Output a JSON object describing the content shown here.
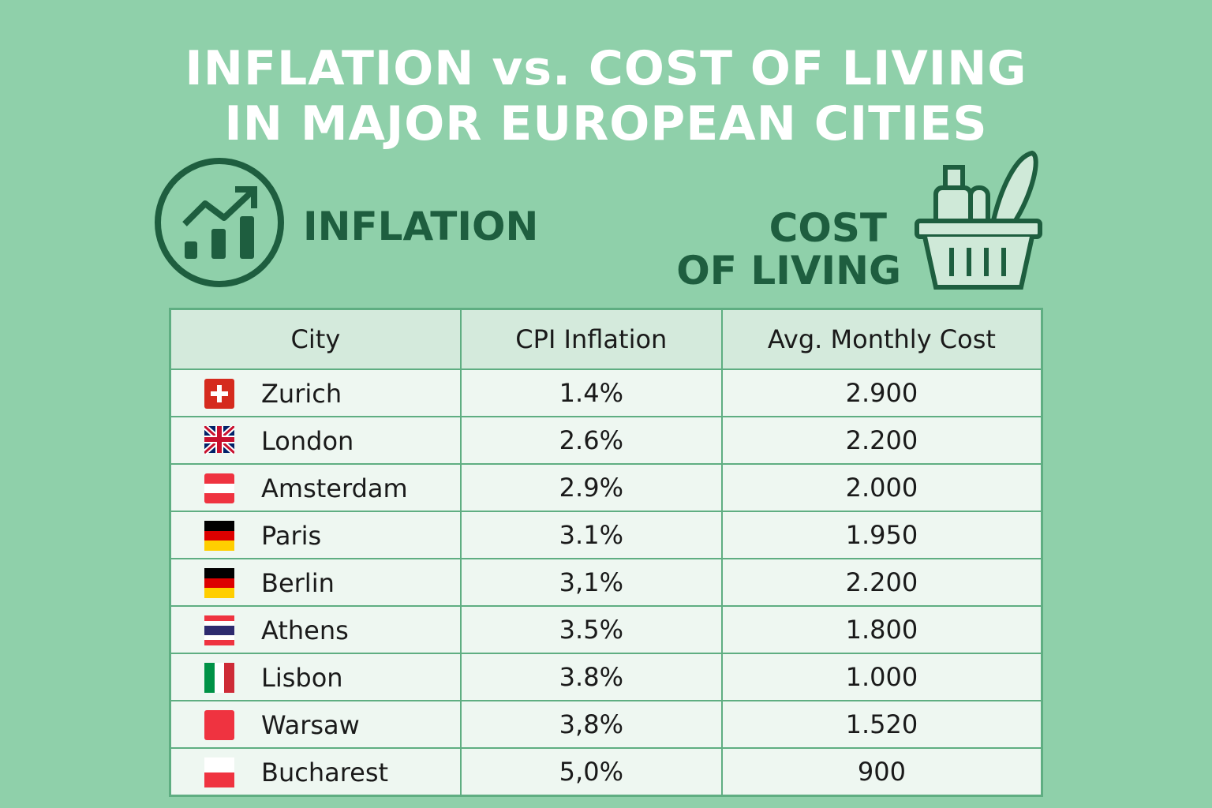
{
  "header": {
    "title_lines": [
      "INFLATION vs. COST OF LIVING",
      "IN MAJOR EUROPEAN CITIES"
    ],
    "inflation_label": "INFLATION",
    "cost_label_lines": [
      "COST",
      "OF LIVING"
    ]
  },
  "table": {
    "columns": [
      "City",
      "CPI Inflation",
      "Avg. Monthly Cost"
    ],
    "rows": [
      [
        "Zurich",
        "1.4%",
        "2.900"
      ],
      [
        "London",
        "2.6%",
        "2.200"
      ],
      [
        "Amsterdam",
        "2.9%",
        "2.000"
      ],
      [
        "Paris",
        "3.1%",
        "1.950"
      ],
      [
        "Berlin",
        "3,1%",
        "2.200"
      ],
      [
        "Athens",
        "3.5%",
        "1.800"
      ],
      [
        "Lisbon",
        "3.8%",
        "1.000"
      ],
      [
        "Warsaw",
        "3,8%",
        "1.520"
      ],
      [
        "Bucharest",
        "5,0%",
        "900"
      ]
    ]
  }
}
